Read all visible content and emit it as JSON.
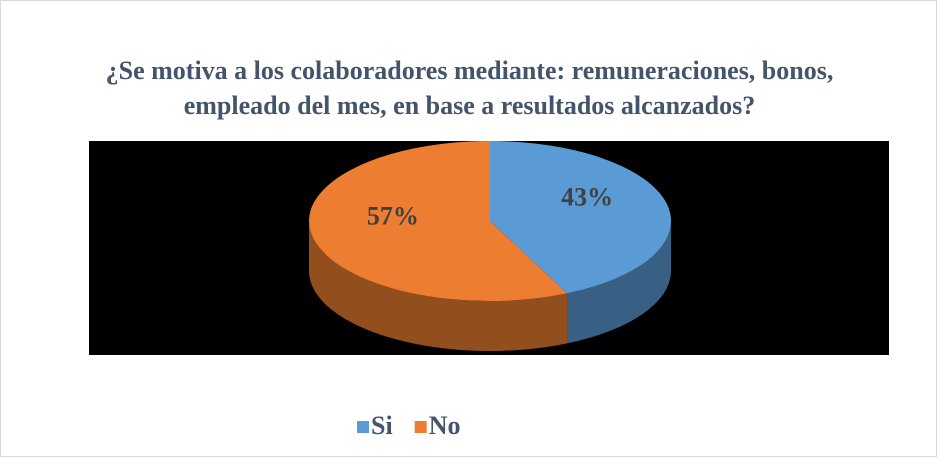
{
  "chart_data": {
    "type": "pie",
    "title": "¿Se motiva a los colaboradores mediante: remuneraciones, bonos, empleado del mes, en base a resultados alcanzados?",
    "categories": [
      "Si",
      "No"
    ],
    "values": [
      43,
      57
    ],
    "value_labels": [
      "43%",
      "57%"
    ],
    "colors": [
      "#5b9bd5",
      "#ed7d31"
    ],
    "legend": "bottom"
  }
}
